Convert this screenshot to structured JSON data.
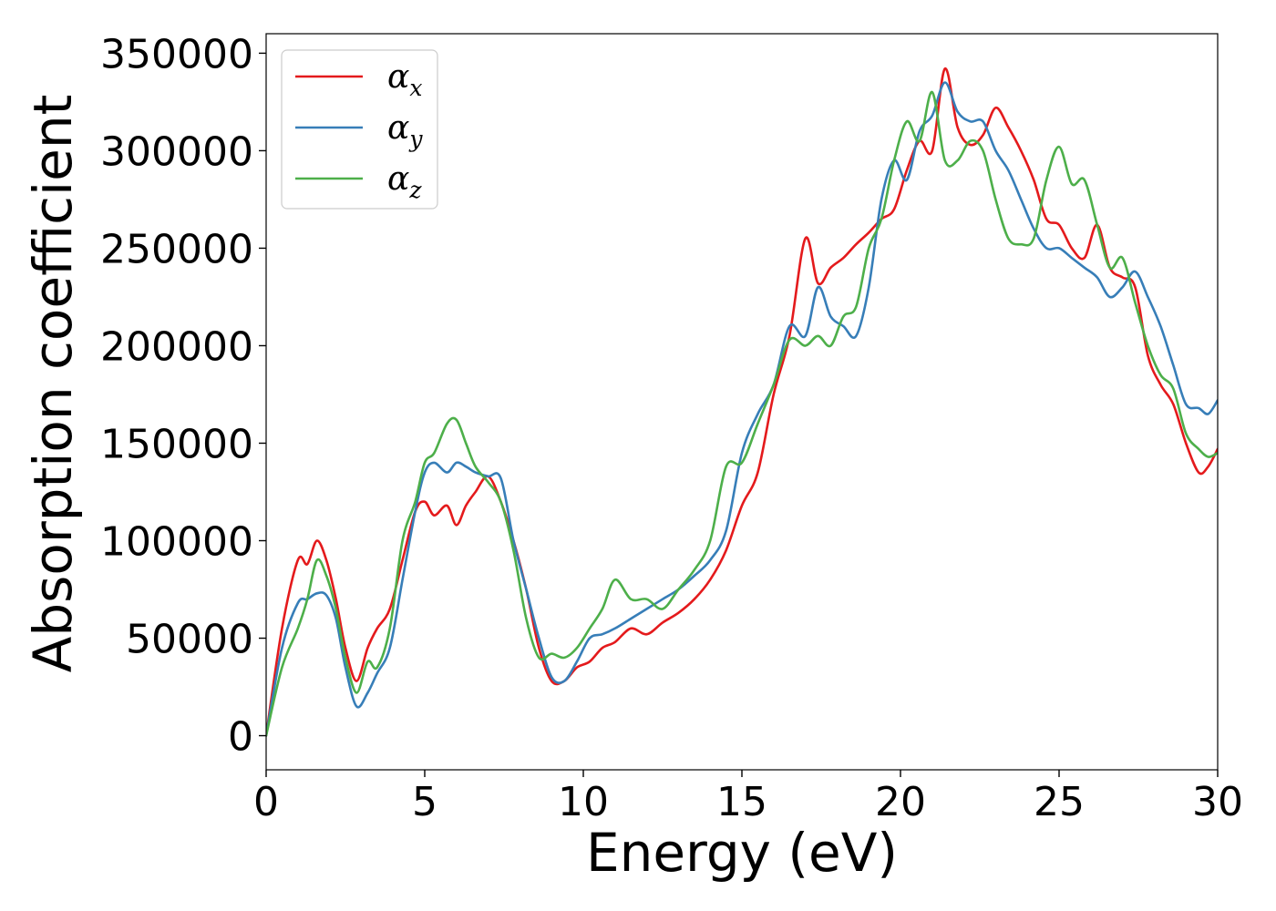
{
  "chart_data": {
    "type": "line",
    "title": "",
    "xlabel": "Energy (eV)",
    "ylabel": "Absorption coefficient",
    "xlim": [
      0,
      30
    ],
    "ylim": [
      -17500,
      360000
    ],
    "xticks": [
      0,
      5,
      10,
      15,
      20,
      25,
      30
    ],
    "yticks": [
      0,
      50000,
      100000,
      150000,
      200000,
      250000,
      300000,
      350000
    ],
    "grid": false,
    "legend": "top-left",
    "series": [
      {
        "name": "x",
        "label_symbol": "α",
        "label_sub": "x",
        "color": "#e41a1c",
        "x": [
          0,
          0.5,
          1.0,
          1.3,
          1.6,
          1.9,
          2.2,
          2.5,
          2.85,
          3.2,
          3.5,
          3.9,
          4.3,
          4.7,
          5.0,
          5.3,
          5.7,
          6.0,
          6.3,
          6.6,
          7.0,
          7.4,
          7.8,
          8.2,
          8.6,
          9.0,
          9.4,
          9.8,
          10.2,
          10.6,
          11.0,
          11.5,
          12.0,
          12.5,
          13.0,
          13.5,
          14.0,
          14.5,
          15.0,
          15.5,
          16.0,
          16.5,
          17.0,
          17.4,
          17.8,
          18.2,
          18.6,
          19.0,
          19.4,
          19.8,
          20.2,
          20.6,
          21.0,
          21.4,
          21.8,
          22.2,
          22.6,
          23.0,
          23.4,
          23.8,
          24.2,
          24.6,
          25.0,
          25.4,
          25.8,
          26.2,
          26.6,
          27.0,
          27.4,
          27.8,
          28.2,
          28.6,
          29.0,
          29.4,
          29.7,
          30.0
        ],
        "values": [
          0,
          55000,
          90000,
          88000,
          100000,
          90000,
          70000,
          45000,
          28000,
          45000,
          55000,
          65000,
          90000,
          115000,
          120000,
          113000,
          118000,
          108000,
          118000,
          125000,
          133000,
          120000,
          100000,
          75000,
          45000,
          28000,
          28000,
          35000,
          38000,
          45000,
          48000,
          55000,
          52000,
          58000,
          63000,
          70000,
          80000,
          95000,
          118000,
          135000,
          175000,
          205000,
          255000,
          232000,
          240000,
          245000,
          252000,
          258000,
          265000,
          270000,
          290000,
          305000,
          300000,
          342000,
          312000,
          303000,
          308000,
          322000,
          312000,
          300000,
          285000,
          265000,
          262000,
          250000,
          245000,
          262000,
          240000,
          235000,
          230000,
          195000,
          180000,
          170000,
          150000,
          135000,
          138000,
          147000
        ]
      },
      {
        "name": "y",
        "label_symbol": "α",
        "label_sub": "y",
        "color": "#377eb8",
        "x": [
          0,
          0.5,
          1.0,
          1.3,
          1.6,
          1.9,
          2.2,
          2.5,
          2.85,
          3.2,
          3.5,
          3.9,
          4.3,
          4.7,
          5.0,
          5.3,
          5.7,
          6.0,
          6.3,
          6.6,
          7.0,
          7.4,
          7.8,
          8.2,
          8.6,
          9.0,
          9.4,
          9.8,
          10.2,
          10.6,
          11.0,
          11.5,
          12.0,
          12.5,
          13.0,
          13.5,
          14.0,
          14.5,
          15.0,
          15.5,
          16.0,
          16.5,
          17.0,
          17.4,
          17.8,
          18.2,
          18.6,
          19.0,
          19.4,
          19.8,
          20.2,
          20.6,
          21.0,
          21.4,
          21.8,
          22.2,
          22.6,
          23.0,
          23.4,
          23.8,
          24.2,
          24.6,
          25.0,
          25.4,
          25.8,
          26.2,
          26.6,
          27.0,
          27.4,
          27.8,
          28.2,
          28.6,
          29.0,
          29.4,
          29.7,
          30.0
        ],
        "values": [
          0,
          45000,
          68000,
          70000,
          73000,
          72000,
          60000,
          35000,
          15000,
          22000,
          32000,
          45000,
          80000,
          115000,
          135000,
          140000,
          135000,
          140000,
          138000,
          135000,
          133000,
          132000,
          100000,
          75000,
          50000,
          30000,
          28000,
          38000,
          50000,
          52000,
          55000,
          60000,
          65000,
          70000,
          75000,
          82000,
          90000,
          105000,
          145000,
          165000,
          180000,
          210000,
          205000,
          230000,
          215000,
          210000,
          205000,
          230000,
          275000,
          295000,
          285000,
          310000,
          318000,
          335000,
          320000,
          315000,
          315000,
          300000,
          290000,
          275000,
          260000,
          250000,
          250000,
          245000,
          240000,
          235000,
          225000,
          230000,
          238000,
          225000,
          210000,
          190000,
          170000,
          168000,
          165000,
          172000
        ]
      },
      {
        "name": "z",
        "label_symbol": "α",
        "label_sub": "z",
        "color": "#4daf4a",
        "x": [
          0,
          0.5,
          1.0,
          1.3,
          1.6,
          1.9,
          2.2,
          2.5,
          2.85,
          3.2,
          3.5,
          3.9,
          4.3,
          4.7,
          5.0,
          5.3,
          5.7,
          6.0,
          6.3,
          6.6,
          7.0,
          7.4,
          7.8,
          8.2,
          8.6,
          9.0,
          9.4,
          9.8,
          10.2,
          10.6,
          11.0,
          11.5,
          12.0,
          12.5,
          13.0,
          13.5,
          14.0,
          14.5,
          15.0,
          15.5,
          16.0,
          16.5,
          17.0,
          17.4,
          17.8,
          18.2,
          18.6,
          19.0,
          19.4,
          19.8,
          20.2,
          20.6,
          21.0,
          21.4,
          21.8,
          22.2,
          22.6,
          23.0,
          23.4,
          23.8,
          24.2,
          24.6,
          25.0,
          25.4,
          25.8,
          26.2,
          26.6,
          27.0,
          27.4,
          27.8,
          28.2,
          28.6,
          29.0,
          29.4,
          29.7,
          30.0
        ],
        "values": [
          0,
          35000,
          55000,
          70000,
          90000,
          82000,
          65000,
          40000,
          22000,
          38000,
          35000,
          55000,
          100000,
          120000,
          140000,
          145000,
          160000,
          162000,
          150000,
          138000,
          130000,
          120000,
          95000,
          60000,
          40000,
          42000,
          40000,
          45000,
          55000,
          65000,
          80000,
          70000,
          70000,
          65000,
          75000,
          85000,
          100000,
          138000,
          140000,
          160000,
          180000,
          203000,
          200000,
          205000,
          200000,
          215000,
          220000,
          250000,
          265000,
          295000,
          315000,
          305000,
          330000,
          295000,
          295000,
          305000,
          300000,
          275000,
          255000,
          252000,
          255000,
          285000,
          302000,
          283000,
          285000,
          262000,
          240000,
          245000,
          222000,
          200000,
          185000,
          178000,
          155000,
          147000,
          143000,
          145000
        ]
      }
    ]
  }
}
